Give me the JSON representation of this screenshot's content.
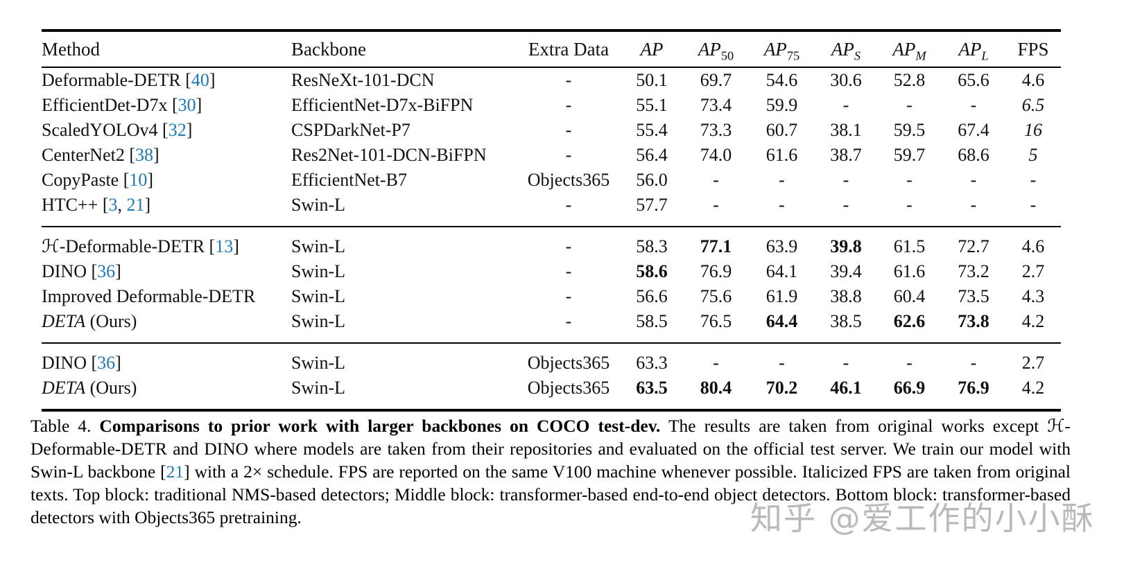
{
  "colors": {
    "citation_blue": "#2077b4",
    "watermark_gray": "#8f8f8f",
    "text": "#111111",
    "background": "#ffffff"
  },
  "table": {
    "headers": [
      {
        "label": "Method",
        "align": "left"
      },
      {
        "label": "Backbone",
        "align": "left"
      },
      {
        "label": "Extra Data",
        "align": "center"
      },
      {
        "math": "AP",
        "sub": ""
      },
      {
        "math": "AP",
        "sub": "50"
      },
      {
        "math": "AP",
        "sub": "75"
      },
      {
        "math": "AP",
        "sub": "S"
      },
      {
        "math": "AP",
        "sub": "M"
      },
      {
        "math": "AP",
        "sub": "L"
      },
      {
        "label": "FPS",
        "align": "center"
      }
    ],
    "blocks": [
      {
        "rows": [
          {
            "method": [
              [
                "Deformable-DETR [",
                "n"
              ],
              [
                "40",
                "c"
              ],
              [
                "]",
                "n"
              ]
            ],
            "backbone": "ResNeXt-101-DCN",
            "extra": "-",
            "cells": [
              [
                "50.1",
                "n"
              ],
              [
                "69.7",
                "n"
              ],
              [
                "54.6",
                "n"
              ],
              [
                "30.6",
                "n"
              ],
              [
                "52.8",
                "n"
              ],
              [
                "65.6",
                "n"
              ],
              [
                "4.6",
                "n"
              ]
            ]
          },
          {
            "method": [
              [
                "EfficientDet-D7x [",
                "n"
              ],
              [
                "30",
                "c"
              ],
              [
                "]",
                "n"
              ]
            ],
            "backbone": "EfficientNet-D7x-BiFPN",
            "extra": "-",
            "cells": [
              [
                "55.1",
                "n"
              ],
              [
                "73.4",
                "n"
              ],
              [
                "59.9",
                "n"
              ],
              [
                "-",
                "n"
              ],
              [
                "-",
                "n"
              ],
              [
                "-",
                "n"
              ],
              [
                "6.5",
                "i"
              ]
            ]
          },
          {
            "method": [
              [
                "ScaledYOLOv4 [",
                "n"
              ],
              [
                "32",
                "c"
              ],
              [
                "]",
                "n"
              ]
            ],
            "backbone": "CSPDarkNet-P7",
            "extra": "-",
            "cells": [
              [
                "55.4",
                "n"
              ],
              [
                "73.3",
                "n"
              ],
              [
                "60.7",
                "n"
              ],
              [
                "38.1",
                "n"
              ],
              [
                "59.5",
                "n"
              ],
              [
                "67.4",
                "n"
              ],
              [
                "16",
                "i"
              ]
            ]
          },
          {
            "method": [
              [
                "CenterNet2 [",
                "n"
              ],
              [
                "38",
                "c"
              ],
              [
                "]",
                "n"
              ]
            ],
            "backbone": "Res2Net-101-DCN-BiFPN",
            "extra": "-",
            "cells": [
              [
                "56.4",
                "n"
              ],
              [
                "74.0",
                "n"
              ],
              [
                "61.6",
                "n"
              ],
              [
                "38.7",
                "n"
              ],
              [
                "59.7",
                "n"
              ],
              [
                "68.6",
                "n"
              ],
              [
                "5",
                "i"
              ]
            ]
          },
          {
            "method": [
              [
                "CopyPaste [",
                "n"
              ],
              [
                "10",
                "c"
              ],
              [
                "]",
                "n"
              ]
            ],
            "backbone": "EfficientNet-B7",
            "extra": "Objects365",
            "cells": [
              [
                "56.0",
                "n"
              ],
              [
                "-",
                "n"
              ],
              [
                "-",
                "n"
              ],
              [
                "-",
                "n"
              ],
              [
                "-",
                "n"
              ],
              [
                "-",
                "n"
              ],
              [
                "-",
                "n"
              ]
            ]
          },
          {
            "method": [
              [
                "HTC++ [",
                "n"
              ],
              [
                "3",
                "c"
              ],
              [
                ", ",
                "n"
              ],
              [
                "21",
                "c"
              ],
              [
                "]",
                "n"
              ]
            ],
            "backbone": "Swin-L",
            "extra": "-",
            "cells": [
              [
                "57.7",
                "n"
              ],
              [
                "-",
                "n"
              ],
              [
                "-",
                "n"
              ],
              [
                "-",
                "n"
              ],
              [
                "-",
                "n"
              ],
              [
                "-",
                "n"
              ],
              [
                "-",
                "n"
              ]
            ]
          }
        ]
      },
      {
        "rows": [
          {
            "method": [
              [
                "ℋ-Deformable-DETR [",
                "n"
              ],
              [
                "13",
                "c"
              ],
              [
                "]",
                "n"
              ]
            ],
            "backbone": "Swin-L",
            "extra": "-",
            "cells": [
              [
                "58.3",
                "n"
              ],
              [
                "77.1",
                "b"
              ],
              [
                "63.9",
                "n"
              ],
              [
                "39.8",
                "b"
              ],
              [
                "61.5",
                "n"
              ],
              [
                "72.7",
                "n"
              ],
              [
                "4.6",
                "n"
              ]
            ]
          },
          {
            "method": [
              [
                "DINO [",
                "n"
              ],
              [
                "36",
                "c"
              ],
              [
                "]",
                "n"
              ]
            ],
            "backbone": "Swin-L",
            "extra": "-",
            "cells": [
              [
                "58.6",
                "b"
              ],
              [
                "76.9",
                "n"
              ],
              [
                "64.1",
                "n"
              ],
              [
                "39.4",
                "n"
              ],
              [
                "61.6",
                "n"
              ],
              [
                "73.2",
                "n"
              ],
              [
                "2.7",
                "n"
              ]
            ]
          },
          {
            "method": [
              [
                "Improved Deformable-DETR",
                "n"
              ]
            ],
            "backbone": "Swin-L",
            "extra": "-",
            "cells": [
              [
                "56.6",
                "n"
              ],
              [
                "75.6",
                "n"
              ],
              [
                "61.9",
                "n"
              ],
              [
                "38.8",
                "n"
              ],
              [
                "60.4",
                "n"
              ],
              [
                "73.5",
                "n"
              ],
              [
                "4.3",
                "n"
              ]
            ]
          },
          {
            "method": [
              [
                "DETA",
                "i"
              ],
              [
                " (Ours)",
                "n"
              ]
            ],
            "backbone": "Swin-L",
            "extra": "-",
            "cells": [
              [
                "58.5",
                "n"
              ],
              [
                "76.5",
                "n"
              ],
              [
                "64.4",
                "b"
              ],
              [
                "38.5",
                "n"
              ],
              [
                "62.6",
                "b"
              ],
              [
                "73.8",
                "b"
              ],
              [
                "4.2",
                "n"
              ]
            ]
          }
        ]
      },
      {
        "rows": [
          {
            "method": [
              [
                "DINO [",
                "n"
              ],
              [
                "36",
                "c"
              ],
              [
                "]",
                "n"
              ]
            ],
            "backbone": "Swin-L",
            "extra": "Objects365",
            "cells": [
              [
                "63.3",
                "n"
              ],
              [
                "-",
                "n"
              ],
              [
                "-",
                "n"
              ],
              [
                "-",
                "n"
              ],
              [
                "-",
                "n"
              ],
              [
                "-",
                "n"
              ],
              [
                "2.7",
                "n"
              ]
            ]
          },
          {
            "method": [
              [
                "DETA",
                "i"
              ],
              [
                " (Ours)",
                "n"
              ]
            ],
            "backbone": "Swin-L",
            "extra": "Objects365",
            "cells": [
              [
                "63.5",
                "b"
              ],
              [
                "80.4",
                "b"
              ],
              [
                "70.2",
                "b"
              ],
              [
                "46.1",
                "b"
              ],
              [
                "66.9",
                "b"
              ],
              [
                "76.9",
                "b"
              ],
              [
                "4.2",
                "n"
              ]
            ]
          }
        ]
      }
    ]
  },
  "caption": {
    "segments": [
      [
        "Table 4.  ",
        "n"
      ],
      [
        "Comparisons to prior work with larger backbones on COCO test-dev.",
        "b"
      ],
      [
        " The results are taken from original works except ℋ-Deformable-DETR and DINO where models are taken from their repositories and evaluated on the official test server. We train our model with Swin-L backbone [",
        "n"
      ],
      [
        "21",
        "c"
      ],
      [
        "] with a 2× schedule. FPS are reported on the same V100 machine whenever possible. Italicized FPS are taken from original texts. Top block: traditional NMS-based detectors; Middle block: transformer-based end-to-end object detectors. Bottom block: transformer-based detectors with Objects365 pretraining.",
        "n"
      ]
    ]
  },
  "watermark": {
    "text": "知乎 @爱工作的小小酥"
  }
}
